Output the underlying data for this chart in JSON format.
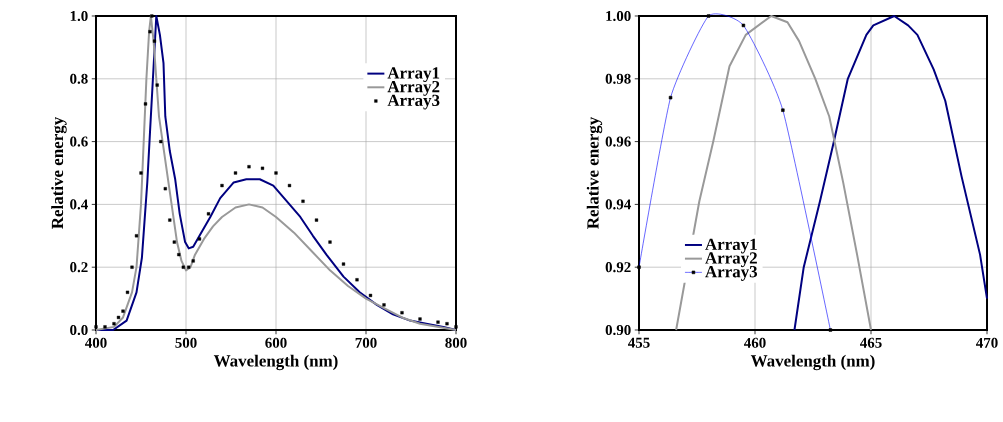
{
  "chart_data": [
    {
      "type": "line",
      "xlabel": "Wavelength (nm)",
      "ylabel": "Relative energy",
      "xlim": [
        400,
        800
      ],
      "ylim": [
        0,
        1
      ],
      "xticks": [
        400,
        500,
        600,
        700,
        800
      ],
      "yticks": [
        {
          "value": 0,
          "label": "0.0"
        },
        {
          "value": 0.2,
          "label": "0.2"
        },
        {
          "value": 0.4,
          "label": "0.4"
        },
        {
          "value": 0.6,
          "label": "0.6"
        },
        {
          "value": 0.8,
          "label": "0.8"
        },
        {
          "value": 1,
          "label": "1.0"
        }
      ],
      "grid": true,
      "legend": "right",
      "series": [
        {
          "name": "Array1",
          "color": "#000080",
          "x": [
            400,
            419,
            434,
            445,
            451,
            457,
            460,
            464,
            467,
            471,
            475,
            477,
            482,
            488,
            493,
            499,
            503,
            508,
            515,
            527,
            538,
            553,
            567,
            582,
            597,
            612,
            627,
            641,
            656,
            675,
            693,
            712,
            730,
            749,
            767,
            786,
            800
          ],
          "values": [
            0.0,
            0.0,
            0.03,
            0.12,
            0.23,
            0.47,
            0.63,
            0.84,
            1.0,
            0.94,
            0.85,
            0.68,
            0.57,
            0.48,
            0.37,
            0.28,
            0.26,
            0.265,
            0.3,
            0.36,
            0.42,
            0.47,
            0.48,
            0.48,
            0.46,
            0.41,
            0.36,
            0.3,
            0.24,
            0.17,
            0.12,
            0.08,
            0.05,
            0.03,
            0.02,
            0.01,
            0.0
          ]
        },
        {
          "name": "Array2",
          "color": "#999999",
          "x": [
            400,
            420,
            430,
            440,
            445,
            450,
            453,
            456,
            459,
            461,
            464,
            467,
            470,
            475,
            480,
            485,
            490,
            495,
            500,
            505,
            510,
            520,
            530,
            540,
            555,
            570,
            585,
            600,
            620,
            640,
            660,
            680,
            700,
            720,
            740,
            760,
            780,
            800
          ],
          "values": [
            0.0,
            0.01,
            0.04,
            0.12,
            0.2,
            0.4,
            0.6,
            0.8,
            0.95,
            1.0,
            0.92,
            0.8,
            0.68,
            0.58,
            0.48,
            0.38,
            0.28,
            0.22,
            0.19,
            0.2,
            0.24,
            0.29,
            0.33,
            0.36,
            0.39,
            0.4,
            0.39,
            0.36,
            0.31,
            0.25,
            0.19,
            0.14,
            0.1,
            0.07,
            0.04,
            0.02,
            0.01,
            0.0
          ]
        },
        {
          "name": "Array3",
          "type": "scatter",
          "color": "#000000",
          "marker": "square",
          "x": [
            400,
            410,
            420,
            425,
            430,
            435,
            440,
            445,
            450,
            455,
            460,
            462,
            465,
            468,
            472,
            477,
            482,
            487,
            492,
            497,
            503,
            508,
            515,
            525,
            540,
            555,
            570,
            585,
            600,
            615,
            630,
            645,
            660,
            675,
            690,
            705,
            720,
            740,
            760,
            780,
            790,
            800
          ],
          "values": [
            0.01,
            0.01,
            0.02,
            0.04,
            0.06,
            0.12,
            0.2,
            0.3,
            0.5,
            0.72,
            0.95,
            1.0,
            0.92,
            0.78,
            0.6,
            0.45,
            0.35,
            0.28,
            0.24,
            0.2,
            0.2,
            0.22,
            0.29,
            0.37,
            0.46,
            0.5,
            0.52,
            0.515,
            0.5,
            0.46,
            0.41,
            0.35,
            0.28,
            0.21,
            0.16,
            0.11,
            0.08,
            0.055,
            0.035,
            0.025,
            0.02,
            0.01
          ]
        }
      ]
    },
    {
      "type": "line",
      "xlabel": "Wavelength (nm)",
      "ylabel": "Relative energy",
      "xlim": [
        455,
        470
      ],
      "ylim": [
        0.9,
        1.0
      ],
      "xticks": [
        455,
        460,
        465,
        470
      ],
      "yticks": [
        {
          "value": 0.9,
          "label": "0.90"
        },
        {
          "value": 0.92,
          "label": "0.92"
        },
        {
          "value": 0.94,
          "label": "0.94"
        },
        {
          "value": 0.96,
          "label": "0.96"
        },
        {
          "value": 0.98,
          "label": "0.98"
        },
        {
          "value": 1.0,
          "label": "1.00"
        }
      ],
      "grid": true,
      "legend": "bottom left",
      "series": [
        {
          "name": "Array1",
          "color": "#000080",
          "x": [
            461.7,
            462.1,
            462.8,
            463.4,
            464.0,
            464.8,
            465.1,
            466.0,
            466.6,
            467.0,
            467.7,
            468.2,
            468.9,
            469.7,
            470.0
          ],
          "values": [
            0.9,
            0.92,
            0.941,
            0.96,
            0.98,
            0.994,
            0.997,
            1.0,
            0.997,
            0.994,
            0.983,
            0.973,
            0.949,
            0.924,
            0.91
          ]
        },
        {
          "name": "Array2",
          "color": "#999999",
          "x": [
            456.6,
            457.6,
            458.2,
            458.9,
            459.6,
            460.7,
            461.4,
            461.9,
            462.6,
            463.2,
            463.8,
            464.4,
            465.0
          ],
          "values": [
            0.9,
            0.941,
            0.96,
            0.984,
            0.994,
            1.0,
            0.998,
            0.992,
            0.98,
            0.968,
            0.947,
            0.924,
            0.9
          ]
        },
        {
          "name": "Array3",
          "color": "#0000ff",
          "marker": "square",
          "x": [
            455.0,
            456.36,
            458.0,
            459.5,
            461.2,
            463.25
          ],
          "values": [
            0.92,
            0.974,
            1.0,
            0.997,
            0.97,
            0.9
          ]
        }
      ]
    }
  ]
}
